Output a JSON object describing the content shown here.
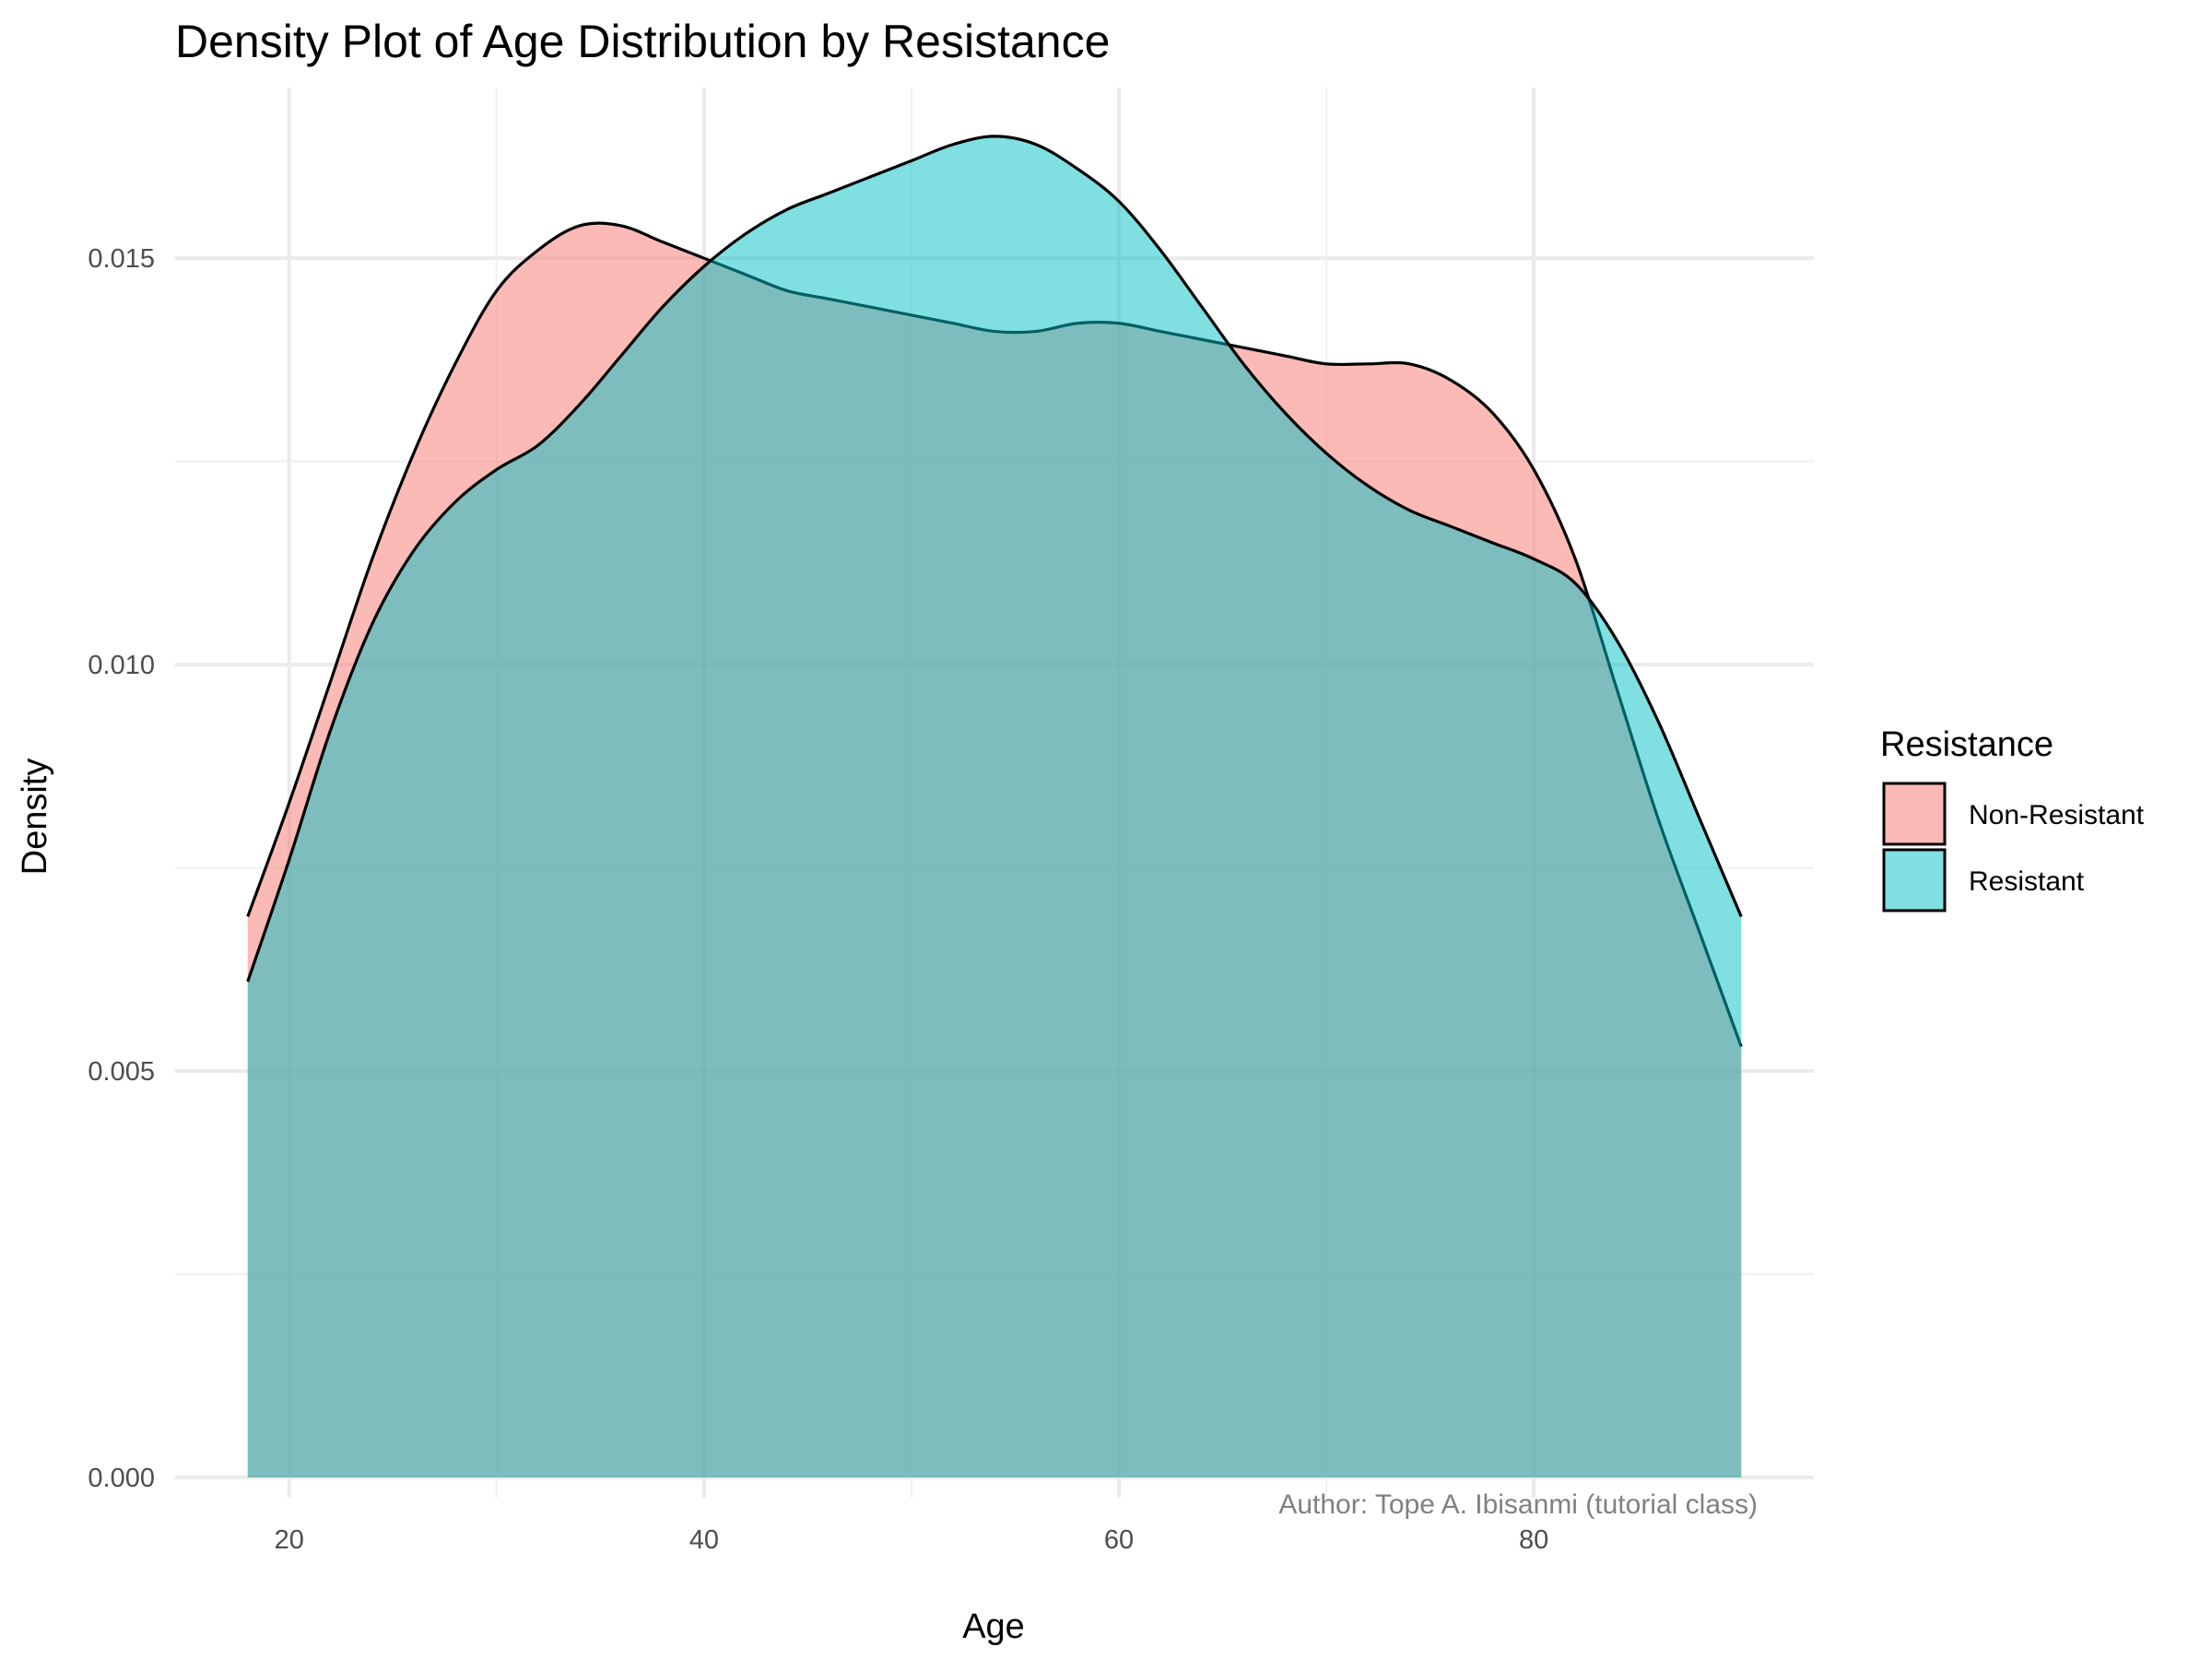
{
  "chart_data": {
    "type": "area",
    "subtype": "density",
    "title": "Density Plot of Age Distribution by Resistance",
    "xlabel": "Age",
    "ylabel": "Density",
    "caption": "Author: Tope A. Ibisanmi (tutorial class)",
    "xlim": [
      14.5,
      93.5
    ],
    "ylim": [
      -0.00025,
      0.0171
    ],
    "x_ticks": [
      20,
      40,
      60,
      80
    ],
    "x_tick_labels": [
      "20",
      "40",
      "60",
      "80"
    ],
    "y_ticks": [
      0,
      0.005,
      0.01,
      0.015
    ],
    "y_tick_labels": [
      "0.000",
      "0.005",
      "0.010",
      "0.015"
    ],
    "grid": true,
    "legend": {
      "title": "Resistance",
      "position": "right"
    },
    "series": [
      {
        "name": "Non-Resistant",
        "color": "#F8766D",
        "fill_opacity": 0.5,
        "x": [
          18,
          20,
          22,
          24,
          26,
          28,
          30,
          32,
          34,
          36,
          38,
          40,
          42,
          44,
          46,
          48,
          50,
          52,
          54,
          56,
          58,
          60,
          62,
          64,
          66,
          68,
          70,
          72,
          74,
          76,
          78,
          80,
          82,
          84,
          86,
          88,
          90
        ],
        "y": [
          0.0069,
          0.0083,
          0.0098,
          0.0113,
          0.0126,
          0.0137,
          0.0146,
          0.0151,
          0.0154,
          0.0154,
          0.0152,
          0.015,
          0.0148,
          0.0146,
          0.0145,
          0.0144,
          0.0143,
          0.0142,
          0.0141,
          0.0141,
          0.0142,
          0.0142,
          0.0141,
          0.014,
          0.0139,
          0.0138,
          0.0137,
          0.0137,
          0.0137,
          0.0135,
          0.0131,
          0.0124,
          0.0113,
          0.0097,
          0.0081,
          0.0067,
          0.0053
        ]
      },
      {
        "name": "Resistant",
        "color": "#00BFC4",
        "fill_opacity": 0.5,
        "x": [
          18,
          20,
          22,
          24,
          26,
          28,
          30,
          32,
          34,
          36,
          38,
          40,
          42,
          44,
          46,
          48,
          50,
          52,
          54,
          56,
          58,
          60,
          62,
          64,
          66,
          68,
          70,
          72,
          74,
          76,
          78,
          80,
          82,
          84,
          86,
          88,
          90
        ],
        "y": [
          0.0061,
          0.0076,
          0.0092,
          0.0105,
          0.0114,
          0.012,
          0.0124,
          0.0127,
          0.0132,
          0.0138,
          0.0144,
          0.0149,
          0.0153,
          0.0156,
          0.0158,
          0.016,
          0.0162,
          0.0164,
          0.0165,
          0.0164,
          0.0161,
          0.0157,
          0.0151,
          0.0144,
          0.0137,
          0.0131,
          0.0126,
          0.0122,
          0.0119,
          0.0117,
          0.0115,
          0.0113,
          0.011,
          0.0103,
          0.0093,
          0.0081,
          0.0069
        ]
      }
    ]
  }
}
